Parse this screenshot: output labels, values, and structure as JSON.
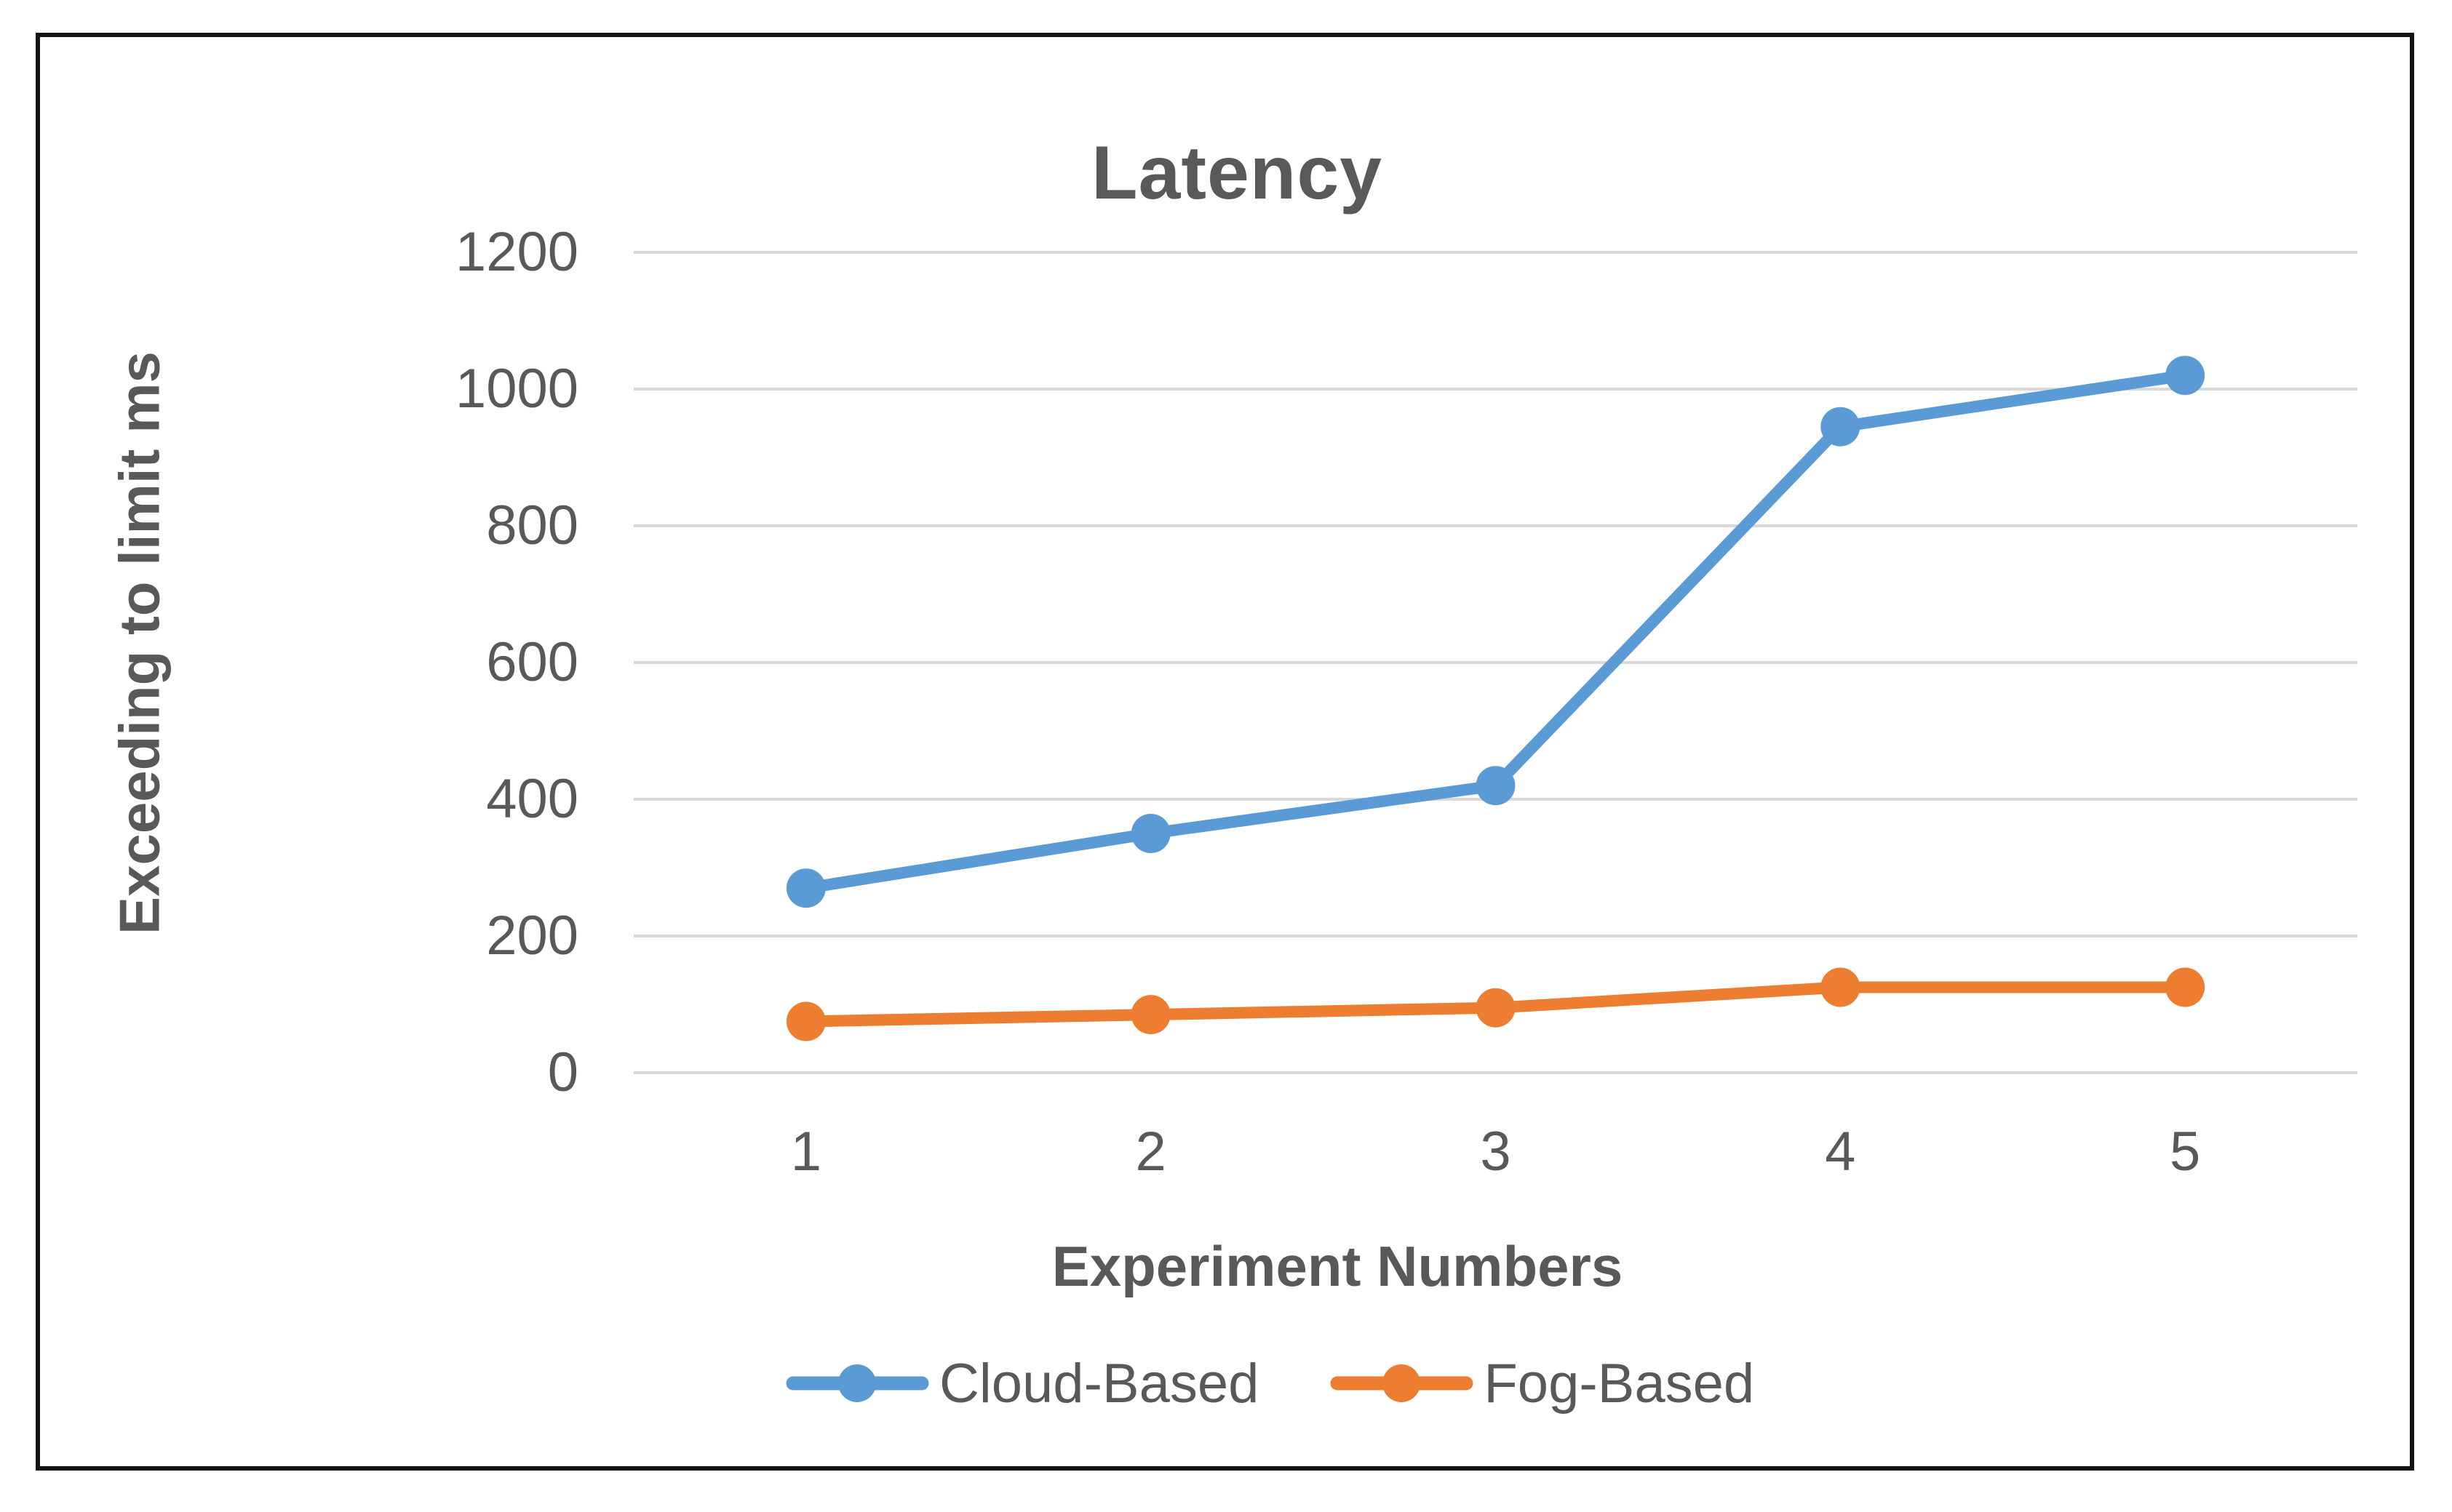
{
  "chart_data": {
    "type": "line",
    "title": "Latency",
    "xlabel": "Experiment Numbers",
    "ylabel": "Exceeding to limit ms",
    "x": [
      1,
      2,
      3,
      4,
      5
    ],
    "ylim": [
      0,
      1200
    ],
    "yticks": [
      0,
      200,
      400,
      600,
      800,
      1000,
      1200
    ],
    "grid": true,
    "legend_position": "bottom",
    "series": [
      {
        "name": "Cloud-Based",
        "color": "#5B9BD5",
        "values": [
          270,
          350,
          420,
          945,
          1020
        ]
      },
      {
        "name": "Fog-Based",
        "color": "#ED7D31",
        "values": [
          75,
          85,
          95,
          125,
          125
        ]
      }
    ]
  },
  "style": {
    "text_color": "#595959",
    "gridline_color": "#D9D9D9",
    "frame_border_color": "#141414",
    "background_color": "#FFFFFF",
    "series_line_width": 16,
    "marker_radius": 27
  }
}
